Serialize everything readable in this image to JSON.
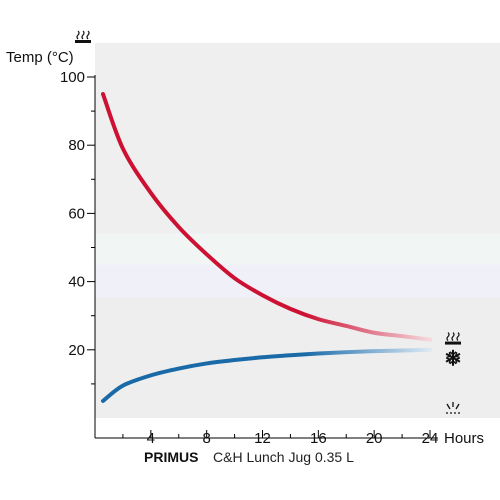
{
  "chart_data": {
    "type": "line",
    "ylabel": "Temp (°C)",
    "xlabel": "Hours",
    "xlim": [
      0,
      24
    ],
    "ylim": [
      0,
      100
    ],
    "x_ticks": [
      4,
      8,
      12,
      16,
      20,
      24
    ],
    "y_ticks": [
      20,
      40,
      60,
      80,
      100
    ],
    "grid": false,
    "series": [
      {
        "icon": "hot-icon",
        "color_start": "#cc1133",
        "color_end": "#f4d8dd",
        "x": [
          0,
          2,
          4,
          6,
          8,
          10,
          12,
          14,
          16,
          18,
          20,
          22,
          24
        ],
        "y": [
          95,
          79,
          66,
          56,
          48,
          41,
          36,
          32,
          29,
          27,
          25,
          24,
          23
        ]
      },
      {
        "icon": "cold-icon",
        "color_start": "#1a6aa8",
        "color_end": "#dce9f4",
        "x": [
          0,
          2,
          4,
          6,
          8,
          10,
          12,
          14,
          16,
          18,
          20,
          22,
          24
        ],
        "y": [
          5,
          9.5,
          12.5,
          14.5,
          16,
          17,
          17.8,
          18.4,
          18.9,
          19.3,
          19.6,
          19.8,
          20
        ]
      }
    ],
    "bands": [
      {
        "from": 0,
        "to": 35.5,
        "color": "#eeeeee"
      },
      {
        "from": 35.5,
        "to": 45,
        "color": "#f0f0f8"
      },
      {
        "from": 45,
        "to": 54,
        "color": "#f1f6f5"
      },
      {
        "from": 54,
        "to": 110,
        "color": "#efefef"
      }
    ],
    "ambient_icon": "ambient-icon",
    "top_icon": "hot-icon"
  },
  "footer": {
    "brand": "PRIMUS",
    "product": "C&H Lunch Jug 0.35 L"
  }
}
